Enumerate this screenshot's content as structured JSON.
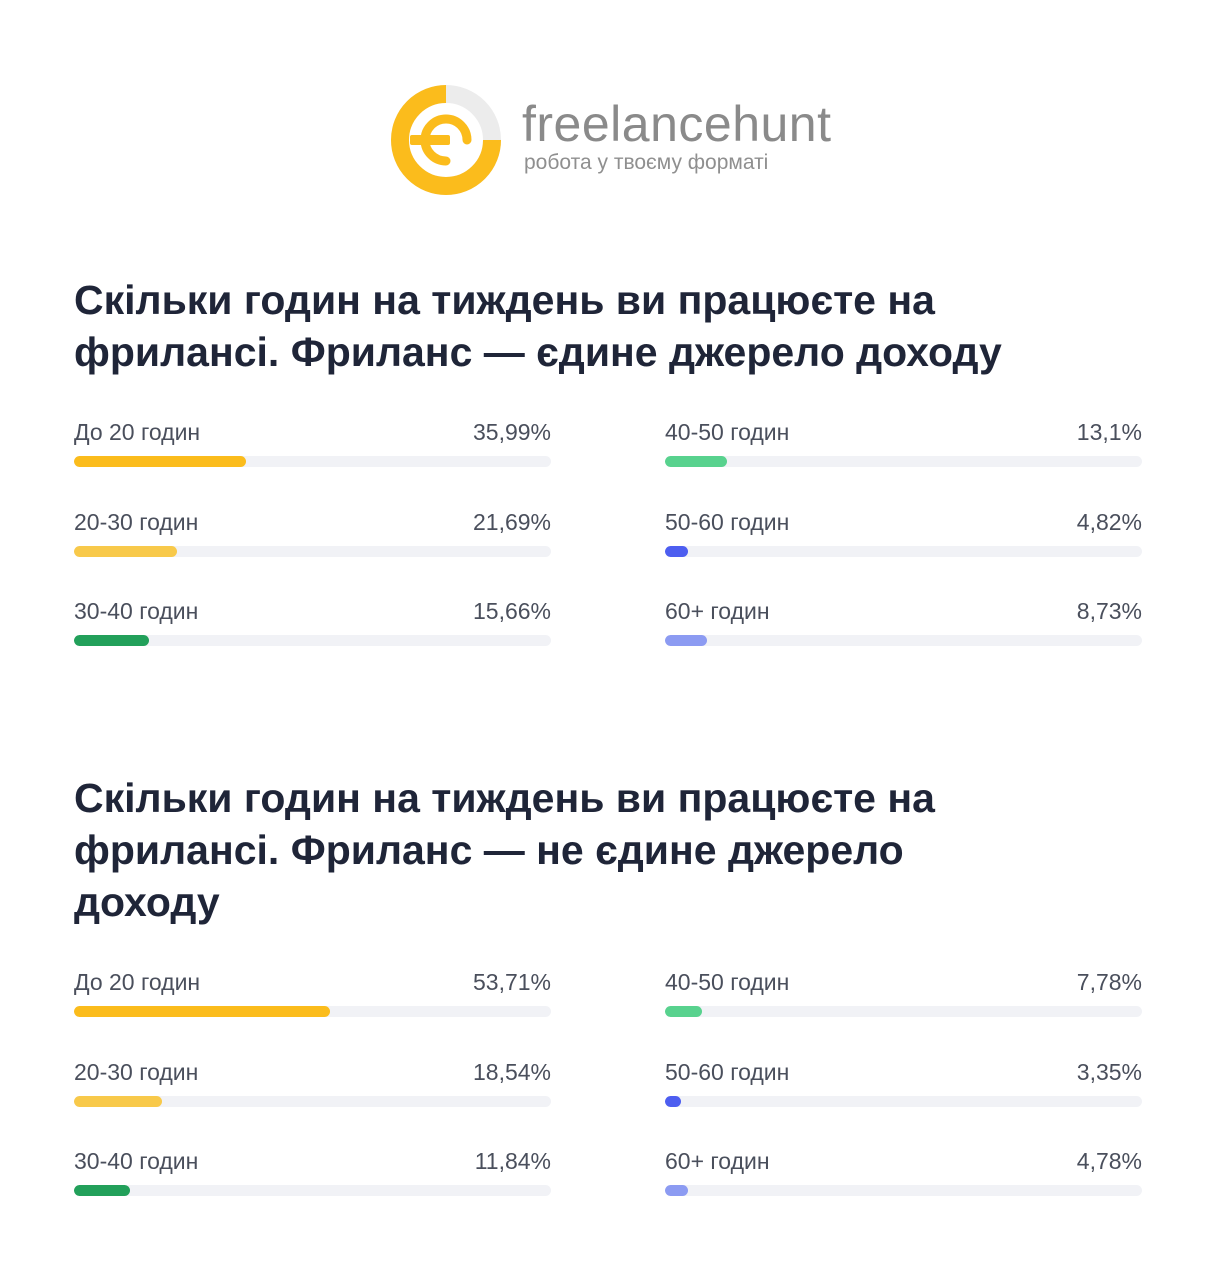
{
  "brand": {
    "name": "freelancehunt",
    "tagline": "робота у твоєму форматі",
    "colors": {
      "yellow": "#fbbc1c",
      "gray": "#ececec"
    }
  },
  "chart_data": [
    {
      "type": "bar",
      "title": "Скільки годин на тиждень ви працюєте на фрилансі. Фриланс — єдине джерело доходу",
      "categories": [
        "До 20 годин",
        "20-30 годин",
        "30-40 годин",
        "40-50 годин",
        "50-60 годин",
        "60+ годин"
      ],
      "values": [
        35.99,
        21.69,
        15.66,
        13.1,
        4.82,
        8.73
      ],
      "value_labels": [
        "35,99%",
        "21,69%",
        "15,66%",
        "13,1%",
        "4,82%",
        "8,73%"
      ],
      "colors": [
        "#fbbc1c",
        "#f8c94a",
        "#22a05a",
        "#58d28e",
        "#4d5ef0",
        "#8c9bf2"
      ],
      "xlim": [
        0,
        100
      ]
    },
    {
      "type": "bar",
      "title": "Скільки годин на тиждень ви працюєте на фрилансі. Фриланс — не єдине джерело доходу",
      "categories": [
        "До 20 годин",
        "20-30 годин",
        "30-40 годин",
        "40-50 годин",
        "50-60 годин",
        "60+ годин"
      ],
      "values": [
        53.71,
        18.54,
        11.84,
        7.78,
        3.35,
        4.78
      ],
      "value_labels": [
        "53,71%",
        "18,54%",
        "11,84%",
        "7,78%",
        "3,35%",
        "4,78%"
      ],
      "colors": [
        "#fbbc1c",
        "#f8c94a",
        "#22a05a",
        "#58d28e",
        "#4d5ef0",
        "#8c9bf2"
      ],
      "xlim": [
        0,
        100
      ]
    }
  ]
}
